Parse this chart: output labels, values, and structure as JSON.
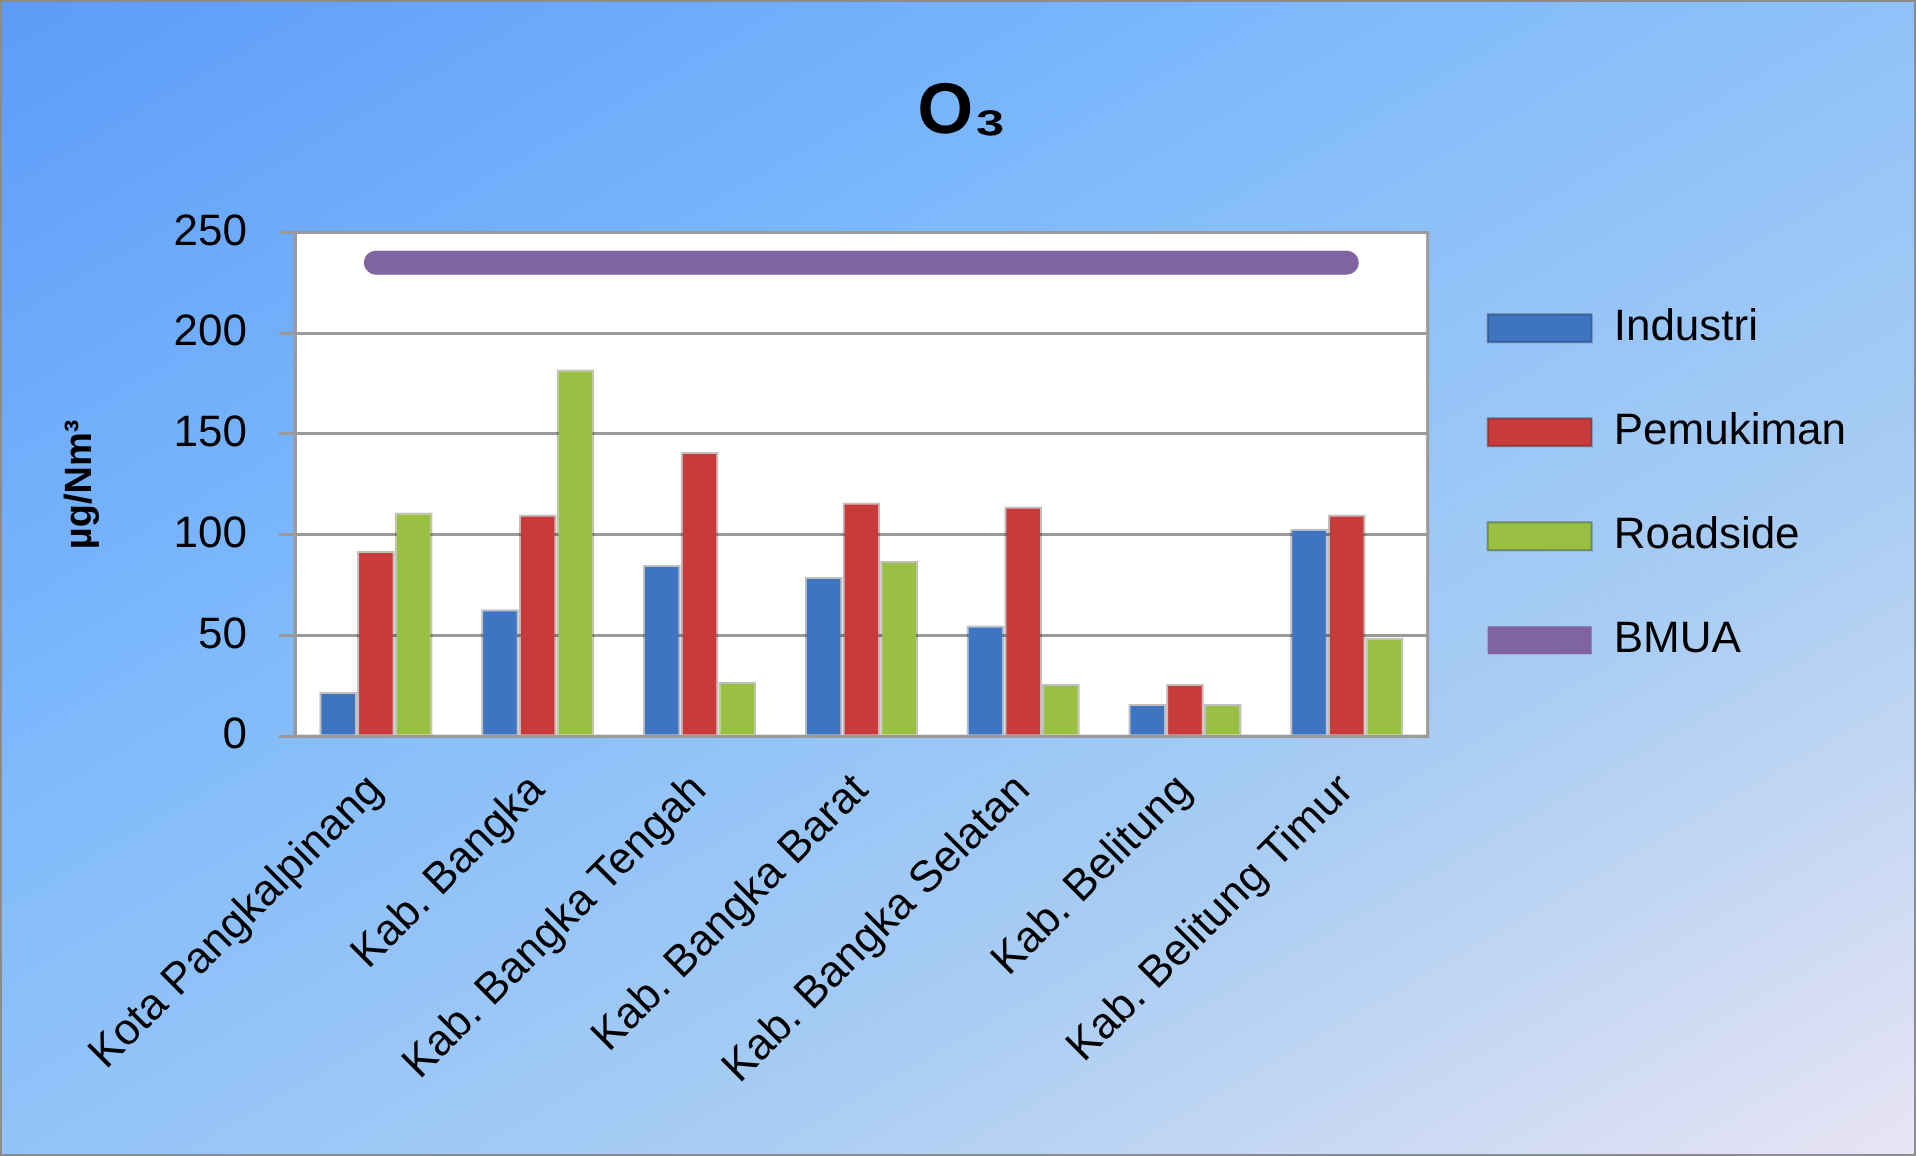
{
  "chart_data": {
    "type": "bar",
    "title": "O₃",
    "ylabel": "µg/Nm³",
    "categories": [
      "Kota Pangkalpinang",
      "Kab. Bangka",
      "Kab. Bangka Tengah",
      "Kab. Bangka Barat",
      "Kab. Bangka Selatan",
      "Kab. Belitung",
      "Kab. Belitung Timur"
    ],
    "series": [
      {
        "name": "Industri",
        "color": "#3f74c1",
        "values": [
          22,
          63,
          85,
          79,
          55,
          16,
          103
        ]
      },
      {
        "name": "Pemukiman",
        "color": "#c83b3b",
        "values": [
          92,
          110,
          141,
          116,
          114,
          26,
          110
        ]
      },
      {
        "name": "Roadside",
        "color": "#99c043",
        "values": [
          111,
          182,
          27,
          87,
          26,
          16,
          49
        ]
      },
      {
        "name": "BMUA",
        "type": "line",
        "color": "#8064a2",
        "values": [
          235,
          235,
          235,
          235,
          235,
          235,
          235
        ]
      }
    ],
    "ylim": [
      0,
      250
    ],
    "yticks": [
      0,
      50,
      100,
      150,
      200,
      250
    ],
    "grid": "y",
    "legend": "right",
    "marker": "none"
  }
}
